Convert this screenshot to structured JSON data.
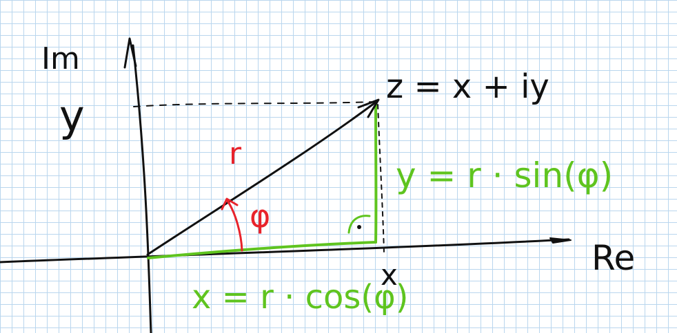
{
  "labels": {
    "im_axis": "Im",
    "re_axis": "Re",
    "y_tick": "y",
    "x_tick": "x",
    "z_formula": "z = x + iy",
    "r_label": "r",
    "phi_label": "φ",
    "y_formula": "y = r · sin(φ)",
    "x_formula": "x = r · cos(φ)",
    "right_angle_dot": "·"
  },
  "colors": {
    "ink": "#111111",
    "green": "#5fc41f",
    "red": "#e8232b",
    "grid": "#b9d6ee"
  }
}
